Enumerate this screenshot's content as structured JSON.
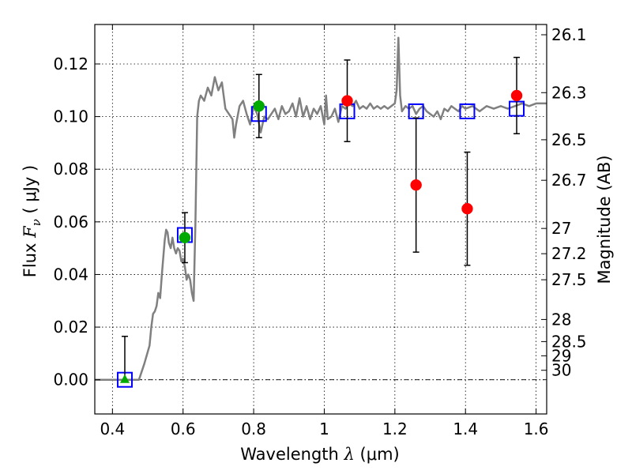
{
  "chart_data": {
    "type": "scatter",
    "xlabel_prefix": "Wavelength",
    "xlabel_symbol": "λ",
    "xlabel_unit": "(μm)",
    "ylabel_prefix": "Flux",
    "ylabel_symbol": "F",
    "ylabel_subscript": "ν",
    "ylabel_unit": "( μJy )",
    "y2label": "Magnitude (AB)",
    "xlim": [
      0.35,
      1.63
    ],
    "ylim": [
      -0.013,
      0.135
    ],
    "grid": true,
    "x_ticks": [
      {
        "value": 0.4,
        "label": "0.4"
      },
      {
        "value": 0.6,
        "label": "0.6"
      },
      {
        "value": 0.8,
        "label": "0.8"
      },
      {
        "value": 1.0,
        "label": "1"
      },
      {
        "value": 1.2,
        "label": "1.2"
      },
      {
        "value": 1.4,
        "label": "1.4"
      },
      {
        "value": 1.6,
        "label": "1.6"
      }
    ],
    "y_ticks": [
      {
        "value": 0.0,
        "label": "0.00"
      },
      {
        "value": 0.02,
        "label": "0.02"
      },
      {
        "value": 0.04,
        "label": "0.04"
      },
      {
        "value": 0.06,
        "label": "0.06"
      },
      {
        "value": 0.08,
        "label": "0.08"
      },
      {
        "value": 0.1,
        "label": "0.10"
      },
      {
        "value": 0.12,
        "label": "0.12"
      }
    ],
    "mag_ticks": [
      {
        "flux": 0.1311,
        "label": "26.1"
      },
      {
        "flux": 0.1091,
        "label": "26.3"
      },
      {
        "flux": 0.0912,
        "label": "26.5"
      },
      {
        "flux": 0.0758,
        "label": "26.7"
      },
      {
        "flux": 0.0575,
        "label": "27"
      },
      {
        "flux": 0.0479,
        "label": "27.2"
      },
      {
        "flux": 0.038,
        "label": "27.5"
      },
      {
        "flux": 0.0229,
        "label": "28"
      },
      {
        "flux": 0.0145,
        "label": "28.5"
      },
      {
        "flux": 0.0091,
        "label": "29"
      },
      {
        "flux": 0.0036,
        "label": "30"
      }
    ],
    "series": [
      {
        "name": "model spectrum",
        "kind": "line",
        "color": "#808080",
        "points": [
          [
            0.35,
            0.0
          ],
          [
            0.46,
            0.0
          ],
          [
            0.475,
            0.0
          ],
          [
            0.49,
            0.006
          ],
          [
            0.505,
            0.013
          ],
          [
            0.51,
            0.02
          ],
          [
            0.515,
            0.025
          ],
          [
            0.52,
            0.026
          ],
          [
            0.525,
            0.028
          ],
          [
            0.53,
            0.033
          ],
          [
            0.535,
            0.031
          ],
          [
            0.54,
            0.04
          ],
          [
            0.545,
            0.048
          ],
          [
            0.548,
            0.053
          ],
          [
            0.552,
            0.057
          ],
          [
            0.556,
            0.056
          ],
          [
            0.56,
            0.052
          ],
          [
            0.565,
            0.05
          ],
          [
            0.57,
            0.054
          ],
          [
            0.575,
            0.05
          ],
          [
            0.58,
            0.048
          ],
          [
            0.585,
            0.05
          ],
          [
            0.59,
            0.049
          ],
          [
            0.595,
            0.045
          ],
          [
            0.6,
            0.046
          ],
          [
            0.605,
            0.043
          ],
          [
            0.61,
            0.038
          ],
          [
            0.615,
            0.04
          ],
          [
            0.62,
            0.038
          ],
          [
            0.625,
            0.033
          ],
          [
            0.63,
            0.03
          ],
          [
            0.635,
            0.06
          ],
          [
            0.64,
            0.1
          ],
          [
            0.645,
            0.106
          ],
          [
            0.65,
            0.108
          ],
          [
            0.66,
            0.106
          ],
          [
            0.67,
            0.111
          ],
          [
            0.68,
            0.108
          ],
          [
            0.69,
            0.115
          ],
          [
            0.7,
            0.11
          ],
          [
            0.71,
            0.113
          ],
          [
            0.715,
            0.108
          ],
          [
            0.72,
            0.103
          ],
          [
            0.73,
            0.101
          ],
          [
            0.74,
            0.099
          ],
          [
            0.745,
            0.092
          ],
          [
            0.75,
            0.097
          ],
          [
            0.76,
            0.104
          ],
          [
            0.77,
            0.106
          ],
          [
            0.78,
            0.101
          ],
          [
            0.79,
            0.097
          ],
          [
            0.8,
            0.104
          ],
          [
            0.81,
            0.101
          ],
          [
            0.82,
            0.094
          ],
          [
            0.83,
            0.1
          ],
          [
            0.84,
            0.099
          ],
          [
            0.85,
            0.101
          ],
          [
            0.86,
            0.103
          ],
          [
            0.87,
            0.099
          ],
          [
            0.88,
            0.104
          ],
          [
            0.89,
            0.101
          ],
          [
            0.9,
            0.102
          ],
          [
            0.91,
            0.105
          ],
          [
            0.92,
            0.1
          ],
          [
            0.93,
            0.107
          ],
          [
            0.94,
            0.1
          ],
          [
            0.95,
            0.104
          ],
          [
            0.96,
            0.099
          ],
          [
            0.97,
            0.103
          ],
          [
            0.98,
            0.101
          ],
          [
            0.99,
            0.104
          ],
          [
            1.0,
            0.097
          ],
          [
            1.005,
            0.108
          ],
          [
            1.01,
            0.099
          ],
          [
            1.02,
            0.1
          ],
          [
            1.03,
            0.103
          ],
          [
            1.04,
            0.098
          ],
          [
            1.05,
            0.104
          ],
          [
            1.06,
            0.103
          ],
          [
            1.07,
            0.105
          ],
          [
            1.08,
            0.104
          ],
          [
            1.09,
            0.106
          ],
          [
            1.1,
            0.103
          ],
          [
            1.11,
            0.104
          ],
          [
            1.12,
            0.103
          ],
          [
            1.13,
            0.105
          ],
          [
            1.14,
            0.103
          ],
          [
            1.15,
            0.104
          ],
          [
            1.16,
            0.103
          ],
          [
            1.17,
            0.104
          ],
          [
            1.18,
            0.103
          ],
          [
            1.19,
            0.104
          ],
          [
            1.2,
            0.105
          ],
          [
            1.205,
            0.11
          ],
          [
            1.21,
            0.13
          ],
          [
            1.215,
            0.108
          ],
          [
            1.22,
            0.102
          ],
          [
            1.23,
            0.104
          ],
          [
            1.24,
            0.103
          ],
          [
            1.25,
            0.104
          ],
          [
            1.26,
            0.101
          ],
          [
            1.27,
            0.103
          ],
          [
            1.28,
            0.104
          ],
          [
            1.29,
            0.102
          ],
          [
            1.3,
            0.101
          ],
          [
            1.31,
            0.1
          ],
          [
            1.32,
            0.102
          ],
          [
            1.33,
            0.099
          ],
          [
            1.34,
            0.103
          ],
          [
            1.35,
            0.102
          ],
          [
            1.36,
            0.104
          ],
          [
            1.37,
            0.103
          ],
          [
            1.38,
            0.102
          ],
          [
            1.39,
            0.104
          ],
          [
            1.4,
            0.103
          ],
          [
            1.42,
            0.104
          ],
          [
            1.44,
            0.102
          ],
          [
            1.46,
            0.104
          ],
          [
            1.48,
            0.103
          ],
          [
            1.5,
            0.104
          ],
          [
            1.52,
            0.103
          ],
          [
            1.54,
            0.104
          ],
          [
            1.56,
            0.105
          ],
          [
            1.58,
            0.104
          ],
          [
            1.6,
            0.105
          ],
          [
            1.63,
            0.105
          ]
        ]
      },
      {
        "name": "model photometry",
        "kind": "open-square",
        "color": "#0000ff",
        "points": [
          [
            0.435,
            0.0
          ],
          [
            0.605,
            0.055
          ],
          [
            0.815,
            0.101
          ],
          [
            1.065,
            0.102
          ],
          [
            1.26,
            0.102
          ],
          [
            1.405,
            0.102
          ],
          [
            1.545,
            0.103
          ]
        ]
      },
      {
        "name": "observed (green)",
        "kind": "filled-circle",
        "color": "#00aa00",
        "points": [
          {
            "x": 0.605,
            "y": 0.054,
            "err": 0.0095
          },
          {
            "x": 0.815,
            "y": 0.104,
            "err": 0.012
          }
        ]
      },
      {
        "name": "upper limit",
        "kind": "triangle",
        "color": "#00aa00",
        "points": [
          {
            "x": 0.435,
            "y": 0.0,
            "err_low": 0.0,
            "err_high": 0.0165
          }
        ]
      },
      {
        "name": "observed (red)",
        "kind": "filled-circle",
        "color": "#ff0000",
        "points": [
          {
            "x": 1.065,
            "y": 0.106,
            "err": 0.0155
          },
          {
            "x": 1.26,
            "y": 0.074,
            "err": 0.0255
          },
          {
            "x": 1.405,
            "y": 0.065,
            "err": 0.0215
          },
          {
            "x": 1.545,
            "y": 0.108,
            "err": 0.0145
          }
        ]
      }
    ]
  }
}
